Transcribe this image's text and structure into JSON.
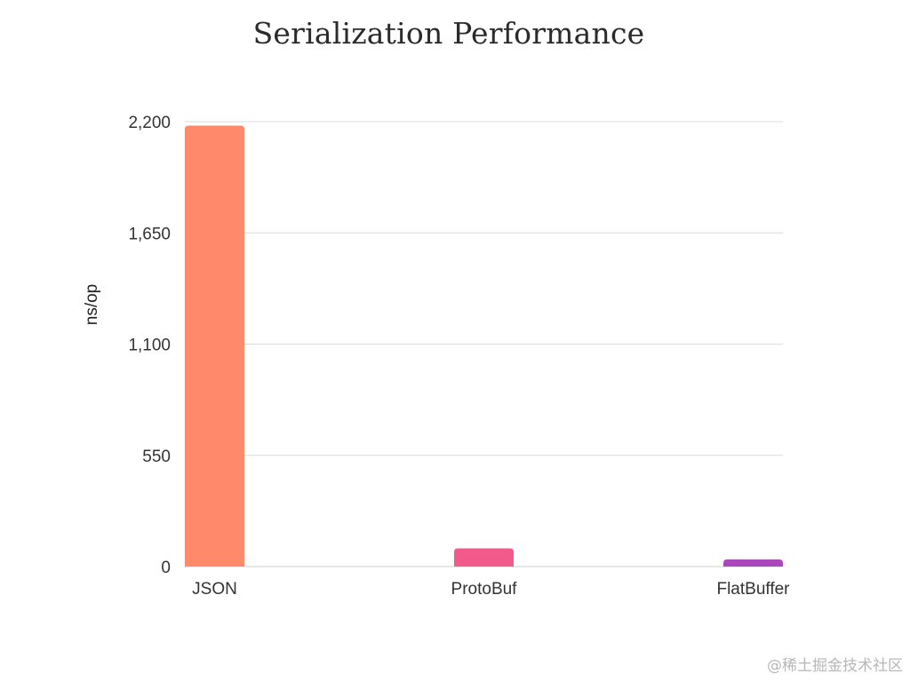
{
  "chart_data": {
    "type": "bar",
    "title": "Serialization Performance",
    "xlabel": "",
    "ylabel": "ns/op",
    "categories": [
      "JSON",
      "ProtoBuf",
      "FlatBuffer"
    ],
    "values": [
      2180,
      90,
      35
    ],
    "colors": [
      "#ff8a6b",
      "#f25a8c",
      "#ab47bc"
    ],
    "ylim": [
      0,
      2200
    ],
    "yticks": [
      0,
      550,
      1100,
      1650,
      2200
    ],
    "ytick_labels": [
      "0",
      "550",
      "1,100",
      "1,650",
      "2,200"
    ],
    "grid": true,
    "legend": "none"
  },
  "watermark": "@稀土掘金技术社区"
}
